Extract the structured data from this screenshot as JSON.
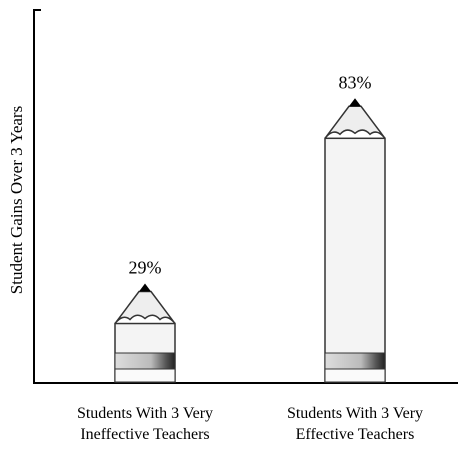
{
  "chart_data": {
    "type": "bar",
    "y_label": "Student Gains Over 3 Years",
    "categories": [
      [
        "Students With 3 Very",
        "Ineffective Teachers"
      ],
      [
        "Students With 3 Very",
        "Effective Teachers"
      ]
    ],
    "values": [
      29,
      83
    ],
    "value_labels": [
      "29%",
      "83%"
    ],
    "color": "#f4f4f4",
    "ylim": [
      0,
      100
    ]
  }
}
